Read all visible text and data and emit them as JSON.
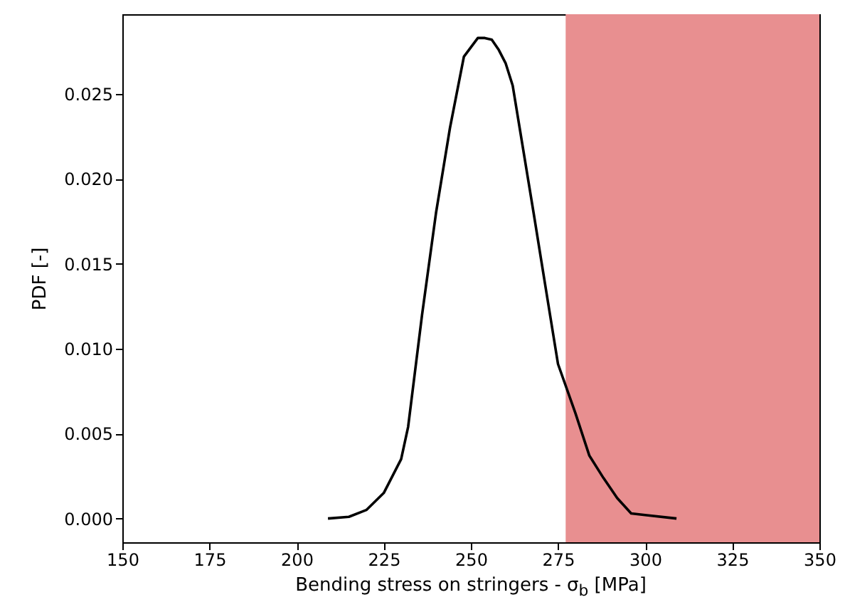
{
  "chart_data": {
    "type": "line",
    "xlabel": "Bending stress on stringers - σ$_{b}$ [MPa]",
    "ylabel": "PDF [-]",
    "x": [
      209,
      215,
      220,
      225,
      230,
      232,
      236,
      240,
      244,
      248,
      252,
      254,
      256,
      258,
      260,
      262,
      264,
      268,
      272,
      275,
      280,
      284,
      288,
      292,
      296,
      300,
      309
    ],
    "series": [
      {
        "color": "#000000",
        "values": [
          0,
          0.0001,
          0.0005,
          0.0015,
          0.0035,
          0.0054,
          0.012,
          0.018,
          0.023,
          0.0272,
          0.0283,
          0.0283,
          0.0282,
          0.0276,
          0.0268,
          0.0255,
          0.023,
          0.018,
          0.0129,
          0.0091,
          0.0062,
          0.0037,
          0.0024,
          0.0012,
          0.0003,
          0.0002,
          0
        ]
      }
    ],
    "xlim": [
      150,
      350
    ],
    "xticks": [
      150,
      175,
      200,
      225,
      250,
      275,
      300,
      325,
      350
    ],
    "ylim": [
      -0.0014,
      0.0297
    ],
    "yticks": [
      {
        "value": 0,
        "label": "0.000"
      },
      {
        "value": 0.005,
        "label": "0.005"
      },
      {
        "value": 0.01,
        "label": "0.010"
      },
      {
        "value": 0.015,
        "label": "0.015"
      },
      {
        "value": 0.02,
        "label": "0.020"
      },
      {
        "value": 0.025,
        "label": "0.025"
      }
    ],
    "bands": [
      {
        "axis": "x",
        "from": 277.2,
        "to": 350,
        "color": "#e88f90"
      }
    ],
    "grid": false,
    "line_style": "solid",
    "marker": "none"
  }
}
